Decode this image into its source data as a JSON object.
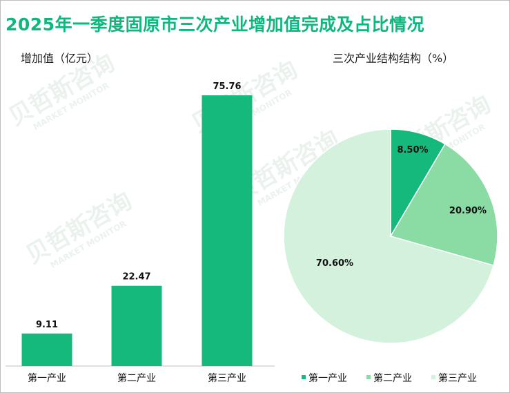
{
  "title": "2025年一季度固原市三次产业增加值完成及占比情况",
  "watermark": {
    "cn": "贝哲斯咨询",
    "en": "MARKET MONITOR"
  },
  "colors": {
    "accent": "#10b67f",
    "primary": "#15b97b",
    "secondary": "#8adca4",
    "tertiary": "#d3f1dc",
    "watermark": "#dbe9e1"
  },
  "chart_data": [
    {
      "type": "bar",
      "title": "增加值（亿元）",
      "categories": [
        "第一产业",
        "第二产业",
        "第三产业"
      ],
      "values": [
        9.11,
        22.47,
        75.76
      ],
      "value_labels": [
        "9.11",
        "22.47",
        "75.76"
      ],
      "grid": false
    },
    {
      "type": "pie",
      "title": "三次产业结构结构（%）",
      "labels": [
        "第一产业",
        "第二产业",
        "第三产业"
      ],
      "values": [
        8.5,
        20.9,
        70.6
      ],
      "value_labels": [
        "8.50%",
        "20.90%",
        "70.60%"
      ],
      "legend": "bottom"
    }
  ]
}
